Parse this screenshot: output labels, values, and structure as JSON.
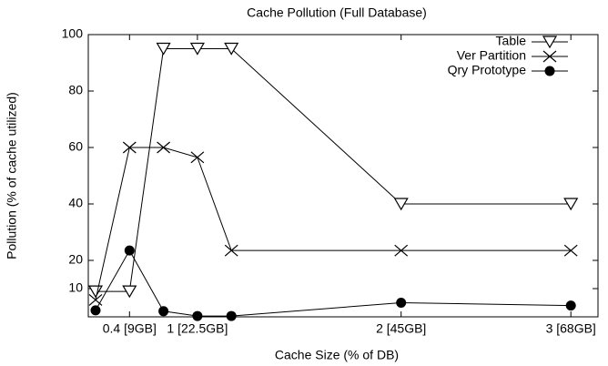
{
  "chart_data": {
    "type": "line",
    "title": "Cache Pollution (Full Database)",
    "x_label": "Cache Size (% of DB)",
    "y_label": "Pollution (% of cache utilized)",
    "categories": [
      null,
      "0.4 [9GB]",
      null,
      "1 [22.5GB]",
      null,
      "2 [45GB]",
      "3 [68GB]"
    ],
    "series": [
      {
        "name": "Table",
        "color": "#000000",
        "marker": "triangle-down",
        "values": [
          9,
          9,
          95,
          95,
          95,
          40,
          40
        ]
      },
      {
        "name": "Ver Partition",
        "color": "#000000",
        "marker": "x",
        "values": [
          6,
          60,
          60,
          56.5,
          23.5,
          23.5,
          23.5
        ]
      },
      {
        "name": "Qry Prototype",
        "color": "#000000",
        "marker": "circle",
        "values": [
          2.3,
          23.5,
          2,
          0.3,
          0.3,
          5,
          4
        ]
      }
    ],
    "ylim": [
      0,
      100
    ],
    "yticks": [
      10,
      20,
      40,
      60,
      80,
      100
    ],
    "legend": "top-right"
  }
}
